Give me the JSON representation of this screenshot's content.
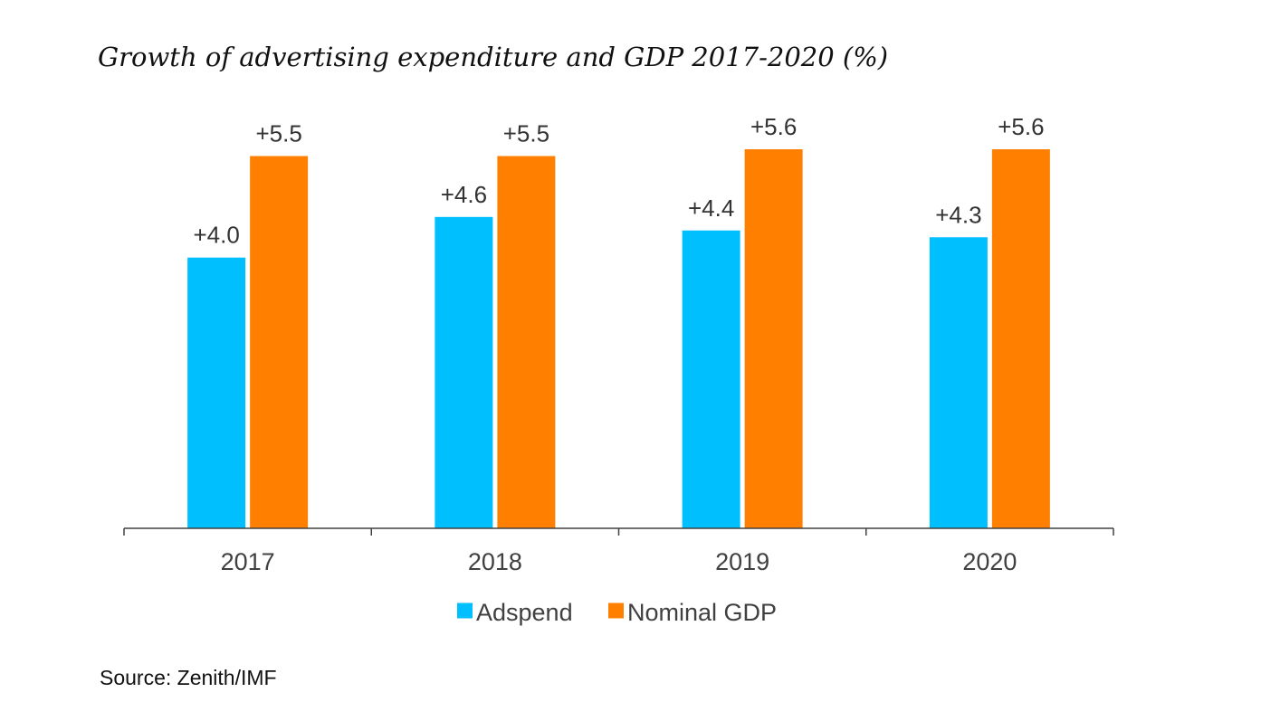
{
  "chart_data": {
    "type": "bar",
    "title": "Growth of advertising expenditure and GDP 2017-2020 (%)",
    "categories": [
      "2017",
      "2018",
      "2019",
      "2020"
    ],
    "series": [
      {
        "name": "Adspend",
        "color": "#00BFFF",
        "values": [
          4.0,
          4.6,
          4.4,
          4.3
        ],
        "labels": [
          "+4.0",
          "+4.6",
          "+4.4",
          "+4.3"
        ]
      },
      {
        "name": "Nominal GDP",
        "color": "#FF8000",
        "values": [
          5.5,
          5.5,
          5.6,
          5.6
        ],
        "labels": [
          "+5.5",
          "+5.5",
          "+5.6",
          "+5.6"
        ]
      }
    ],
    "xlabel": "",
    "ylabel": "",
    "ylim": [
      0,
      5.6
    ],
    "grid": false,
    "legend_position": "bottom"
  },
  "source": "Source: Zenith/IMF"
}
